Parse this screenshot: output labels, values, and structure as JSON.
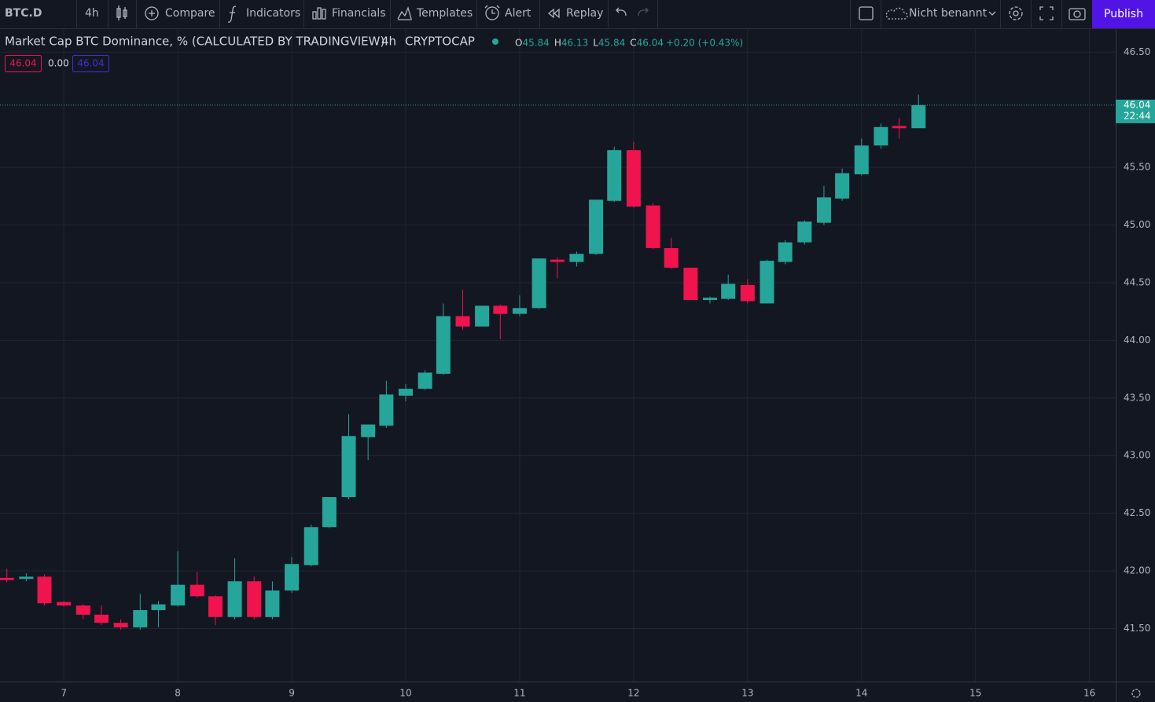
{
  "toolbar": {
    "symbol": "BTC.D",
    "interval": "4h",
    "compare": "Compare",
    "indicators": "Indicators",
    "financials": "Financials",
    "templates": "Templates",
    "alert": "Alert",
    "replay": "Replay",
    "layout_name": "Nicht benannt",
    "publish": "Publish"
  },
  "legend": {
    "interval": "4h",
    "exchange": "CRYPTOCAP",
    "ohlc_labels": [
      "O",
      "H",
      "L",
      "C"
    ],
    "change": "+0.20 (+0.43%)"
  },
  "indicator_row": {
    "first": "46.04",
    "second": "0.00",
    "third": "46.04"
  },
  "price_marker": {
    "time_left": "22:44"
  },
  "chart_data": {
    "type": "candlestick",
    "title": "Market Cap BTC Dominance, % (CALCULATED BY TRADINGVIEW)",
    "x": [
      6.5,
      6.67,
      6.83,
      7,
      7.17,
      7.33,
      7.5,
      7.67,
      7.83,
      8,
      8.17,
      8.33,
      8.5,
      8.67,
      8.83,
      9,
      9.17,
      9.33,
      9.5,
      9.67,
      9.83,
      10,
      10.17,
      10.33,
      10.5,
      10.67,
      10.83,
      11,
      11.17,
      11.33,
      11.5,
      11.67,
      11.83,
      12,
      12.17,
      12.33,
      12.5,
      12.67,
      12.83,
      13,
      13.17,
      13.33,
      13.5,
      13.67,
      13.83,
      14,
      14.17,
      14.33,
      14.5
    ],
    "open": [
      41.94,
      41.93,
      41.95,
      41.73,
      41.7,
      41.62,
      41.55,
      41.51,
      41.66,
      41.7,
      41.88,
      41.78,
      41.6,
      41.91,
      41.6,
      41.83,
      42.05,
      42.38,
      42.64,
      43.16,
      43.26,
      43.52,
      43.58,
      43.71,
      44.21,
      44.12,
      44.3,
      44.23,
      44.28,
      44.7,
      44.68,
      44.75,
      45.21,
      45.65,
      45.17,
      44.8,
      44.63,
      44.35,
      44.36,
      44.48,
      44.32,
      44.68,
      44.85,
      45.02,
      45.23,
      45.44,
      45.69,
      45.86,
      45.84
    ],
    "high": [
      42.02,
      41.98,
      41.97,
      41.74,
      41.71,
      41.7,
      41.58,
      41.8,
      41.74,
      42.17,
      41.99,
      41.79,
      42.11,
      41.95,
      41.91,
      42.12,
      42.4,
      42.64,
      43.36,
      43.27,
      43.65,
      43.62,
      43.74,
      44.32,
      44.44,
      44.3,
      44.31,
      44.39,
      44.71,
      44.72,
      44.77,
      45.22,
      45.68,
      45.72,
      45.19,
      44.89,
      44.63,
      44.38,
      44.57,
      44.53,
      44.7,
      44.87,
      45.04,
      45.34,
      45.49,
      45.75,
      45.88,
      45.93,
      46.13
    ],
    "low": [
      41.9,
      41.91,
      41.7,
      41.69,
      41.58,
      41.53,
      41.49,
      41.49,
      41.51,
      41.69,
      41.77,
      41.53,
      41.58,
      41.58,
      41.58,
      41.81,
      42.04,
      42.37,
      42.62,
      42.96,
      43.24,
      43.47,
      43.57,
      43.7,
      44.09,
      44.12,
      44.01,
      44.21,
      44.27,
      44.54,
      44.64,
      44.74,
      45.2,
      45.15,
      44.79,
      44.62,
      44.35,
      44.32,
      44.35,
      44.32,
      44.32,
      44.66,
      44.83,
      45.0,
      45.21,
      45.43,
      45.66,
      45.75,
      45.84
    ],
    "close": [
      41.92,
      41.95,
      41.72,
      41.7,
      41.62,
      41.55,
      41.51,
      41.66,
      41.71,
      41.88,
      41.78,
      41.6,
      41.91,
      41.6,
      41.83,
      42.06,
      42.38,
      42.64,
      43.17,
      43.27,
      43.53,
      43.58,
      43.72,
      44.21,
      44.12,
      44.3,
      44.23,
      44.28,
      44.71,
      44.68,
      44.75,
      45.22,
      45.65,
      45.16,
      44.8,
      44.63,
      44.35,
      44.37,
      44.49,
      44.34,
      44.69,
      44.85,
      45.03,
      45.24,
      45.45,
      45.69,
      45.85,
      45.84,
      46.04
    ],
    "up_color": "#26a69a",
    "down_color": "#f0134d",
    "xlim": [
      6.44,
      16.23
    ],
    "xticks": [
      7,
      8,
      9,
      10,
      11,
      12,
      13,
      14,
      15,
      16
    ],
    "ylim": [
      41.04,
      46.7
    ],
    "yticks": [
      {
        "value": 41.5,
        "label": "41.50"
      },
      {
        "value": 42,
        "label": "42.00"
      },
      {
        "value": 42.5,
        "label": "42.50"
      },
      {
        "value": 43,
        "label": "43.00"
      },
      {
        "value": 43.5,
        "label": "43.50"
      },
      {
        "value": 44,
        "label": "44.00"
      },
      {
        "value": 44.5,
        "label": "44.50"
      },
      {
        "value": 45,
        "label": "45.00"
      },
      {
        "value": 45.5,
        "label": "45.50"
      },
      {
        "value": 46.5,
        "label": "46.50"
      }
    ],
    "grid": true
  }
}
